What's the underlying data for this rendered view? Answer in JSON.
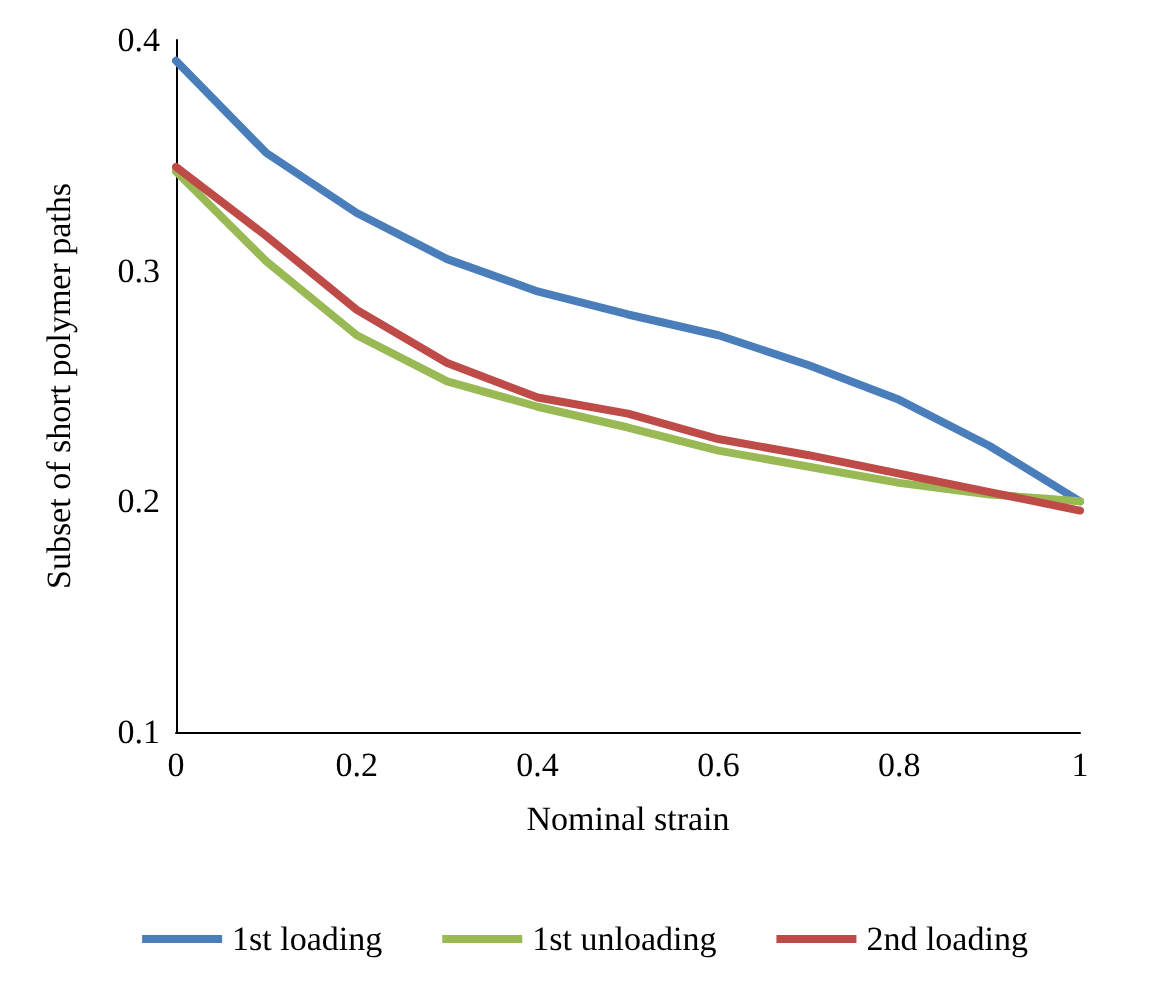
{
  "chart_data": {
    "type": "line",
    "xlabel": "Nominal strain",
    "ylabel": "Subset of short polymer paths",
    "x": [
      0,
      0.1,
      0.2,
      0.3,
      0.4,
      0.5,
      0.6,
      0.7,
      0.8,
      0.9,
      1
    ],
    "series": [
      {
        "name": "1st loading",
        "color": "#4a7ebb",
        "values": [
          0.391,
          0.351,
          0.325,
          0.305,
          0.291,
          0.281,
          0.272,
          0.259,
          0.244,
          0.224,
          0.2
        ]
      },
      {
        "name": "1st unloading",
        "color": "#98b954",
        "values": [
          0.343,
          0.304,
          0.272,
          0.252,
          0.241,
          0.232,
          0.222,
          0.215,
          0.208,
          0.203,
          0.2
        ]
      },
      {
        "name": "2nd loading",
        "color": "#be4b48",
        "values": [
          0.345,
          0.315,
          0.283,
          0.26,
          0.245,
          0.238,
          0.227,
          0.22,
          0.212,
          0.204,
          0.196
        ]
      }
    ],
    "xlim": [
      0,
      1
    ],
    "xticks": [
      0,
      0.2,
      0.4,
      0.6,
      0.8,
      1
    ],
    "ylim": [
      0.1,
      0.4
    ],
    "yticks": [
      0.1,
      0.2,
      0.3,
      0.4
    ],
    "grid": false,
    "legend": "bottom",
    "marker": "none",
    "line_style": "solid"
  }
}
